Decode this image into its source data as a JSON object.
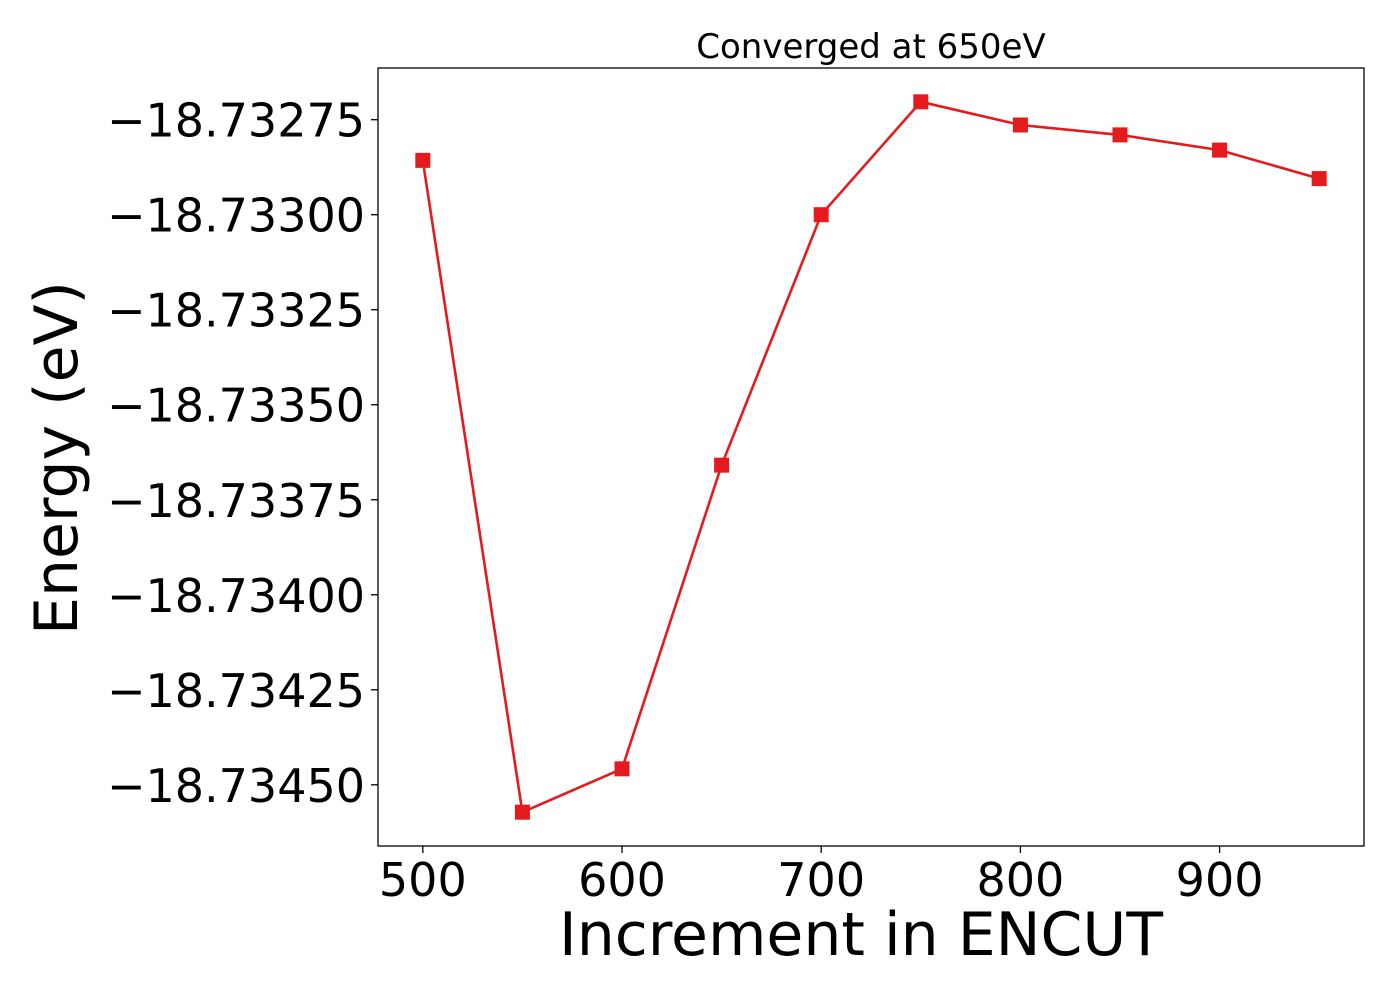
{
  "chart_data": {
    "type": "line",
    "title": "Converged at 650eV",
    "xlabel": "Increment in ENCUT",
    "ylabel": "Energy (eV)",
    "x": [
      500,
      550,
      600,
      650,
      700,
      750,
      800,
      850,
      900,
      950
    ],
    "series": [
      {
        "values": [
          -18.732857,
          -18.734572,
          -18.734458,
          -18.733659,
          -18.733,
          -18.732703,
          -18.732764,
          -18.73279,
          -18.73283,
          -18.732905
        ],
        "color": "#e41a1c",
        "marker": "square"
      }
    ],
    "xlim": [
      477.5,
      972.5
    ],
    "ylim": [
      -18.734661,
      -18.732614
    ],
    "xticks": [
      500,
      600,
      700,
      800,
      900
    ],
    "xtick_labels": [
      "500",
      "600",
      "700",
      "800",
      "900"
    ],
    "yticks": [
      -18.73275,
      -18.733,
      -18.73325,
      -18.7335,
      -18.73375,
      -18.734,
      -18.73425,
      -18.7345
    ],
    "ytick_labels": [
      "−18.73275",
      "−18.73300",
      "−18.73325",
      "−18.73350",
      "−18.73375",
      "−18.73400",
      "−18.73425",
      "−18.73450"
    ],
    "grid": false,
    "legend": "none"
  }
}
